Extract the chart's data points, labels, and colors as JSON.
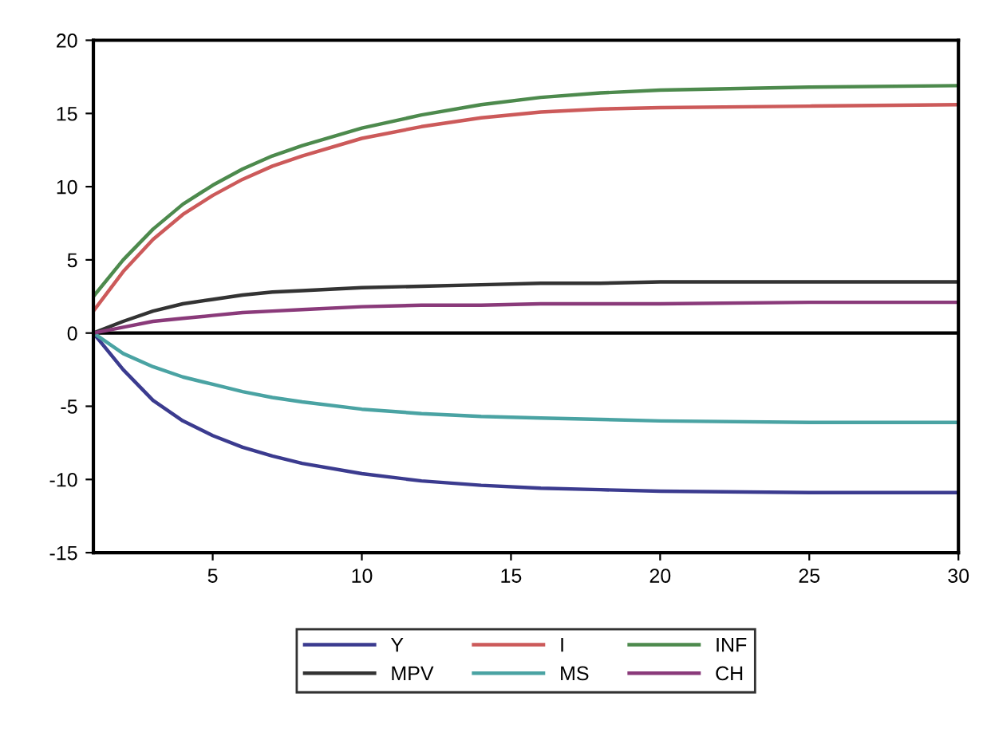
{
  "chart_data": {
    "type": "line",
    "x": [
      1,
      2,
      3,
      4,
      5,
      6,
      7,
      8,
      10,
      12,
      14,
      16,
      18,
      20,
      25,
      30
    ],
    "series": [
      {
        "name": "Y",
        "color": "#3b3b8f",
        "values": [
          0,
          -2.5,
          -4.6,
          -6.0,
          -7.0,
          -7.8,
          -8.4,
          -8.9,
          -9.6,
          -10.1,
          -10.4,
          -10.6,
          -10.7,
          -10.8,
          -10.9,
          -10.9
        ]
      },
      {
        "name": "I",
        "color": "#cc5a5a",
        "values": [
          1.5,
          4.2,
          6.4,
          8.1,
          9.4,
          10.5,
          11.4,
          12.1,
          13.3,
          14.1,
          14.7,
          15.1,
          15.3,
          15.4,
          15.5,
          15.6
        ]
      },
      {
        "name": "INF",
        "color": "#4d8a4d",
        "values": [
          2.5,
          5.0,
          7.1,
          8.8,
          10.1,
          11.2,
          12.1,
          12.8,
          14.0,
          14.9,
          15.6,
          16.1,
          16.4,
          16.6,
          16.8,
          16.9
        ]
      },
      {
        "name": "MPV",
        "color": "#333333",
        "values": [
          0,
          0.8,
          1.5,
          2.0,
          2.3,
          2.6,
          2.8,
          2.9,
          3.1,
          3.2,
          3.3,
          3.4,
          3.4,
          3.5,
          3.5,
          3.5
        ]
      },
      {
        "name": "MS",
        "color": "#4aa3a3",
        "values": [
          0,
          -1.4,
          -2.3,
          -3.0,
          -3.5,
          -4.0,
          -4.4,
          -4.7,
          -5.2,
          -5.5,
          -5.7,
          -5.8,
          -5.9,
          -6.0,
          -6.1,
          -6.1
        ]
      },
      {
        "name": "CH",
        "color": "#8a3a7a",
        "values": [
          0,
          0.4,
          0.8,
          1.0,
          1.2,
          1.4,
          1.5,
          1.6,
          1.8,
          1.9,
          1.9,
          2.0,
          2.0,
          2.0,
          2.1,
          2.1
        ]
      }
    ],
    "xlim": [
      1,
      30
    ],
    "xticks": [
      5,
      10,
      15,
      20,
      25,
      30
    ],
    "ylim": [
      -15,
      20
    ],
    "yticks": [
      -15,
      -10,
      -5,
      0,
      5,
      10,
      15,
      20
    ],
    "ref_lines": [
      {
        "axis": "y",
        "value": 0,
        "color": "#000000"
      }
    ],
    "legend": "bottom",
    "grid": false,
    "line_style": "solid",
    "marker": "none"
  }
}
